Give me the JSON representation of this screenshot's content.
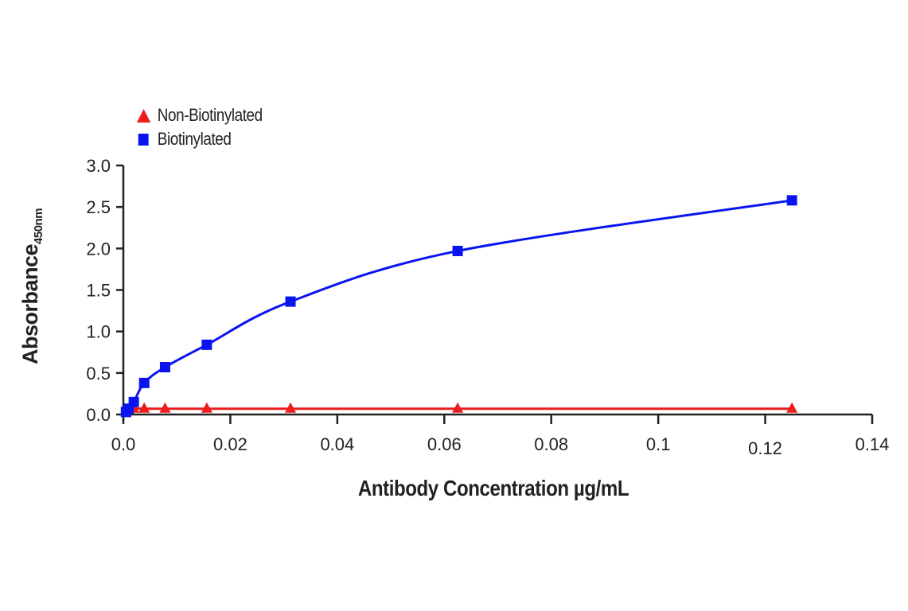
{
  "chart_data": {
    "type": "line",
    "title": "",
    "xlabel": "Antibody Concentration µg/mL",
    "ylabel": "Absorbance",
    "ylabel_subscript": "450nm",
    "xlim": [
      0,
      0.14
    ],
    "ylim": [
      0,
      3.0
    ],
    "x_ticks": [
      0.0,
      0.02,
      0.04,
      0.06,
      0.08,
      0.1,
      0.12,
      0.14
    ],
    "x_tick_labels": [
      "0.0",
      "0.02",
      "0.04",
      "0.06",
      "0.08",
      "0.1",
      "0.12",
      "0.14"
    ],
    "y_ticks": [
      0.0,
      0.5,
      1.0,
      1.5,
      2.0,
      2.5,
      3.0
    ],
    "y_tick_labels": [
      "0.0",
      "0.5",
      "1.0",
      "1.5",
      "2.0",
      "2.5",
      "3.0"
    ],
    "grid": false,
    "legend_position": "top-left",
    "series": [
      {
        "name": "Non-Biotinylated",
        "color": "#ee1c1c",
        "marker": "triangle",
        "x": [
          0.00049,
          0.00098,
          0.00195,
          0.0039,
          0.0078,
          0.0156,
          0.03125,
          0.0625,
          0.125
        ],
        "y": [
          0.05,
          0.06,
          0.07,
          0.07,
          0.07,
          0.07,
          0.07,
          0.07,
          0.07
        ]
      },
      {
        "name": "Biotinylated",
        "color": "#0a14f0",
        "marker": "square",
        "x": [
          0.00049,
          0.00098,
          0.00195,
          0.0039,
          0.0078,
          0.0156,
          0.03125,
          0.0625,
          0.125
        ],
        "y": [
          0.03,
          0.07,
          0.15,
          0.38,
          0.57,
          0.84,
          1.36,
          1.97,
          2.58
        ]
      }
    ]
  },
  "legend": {
    "items": [
      {
        "label": "Non-Biotinylated"
      },
      {
        "label": "Biotinylated"
      }
    ]
  },
  "axes": {
    "ylabel": "Absorbance",
    "ylabel_sub": "450nm",
    "xlabel": "Antibody Concentration µg/mL"
  }
}
